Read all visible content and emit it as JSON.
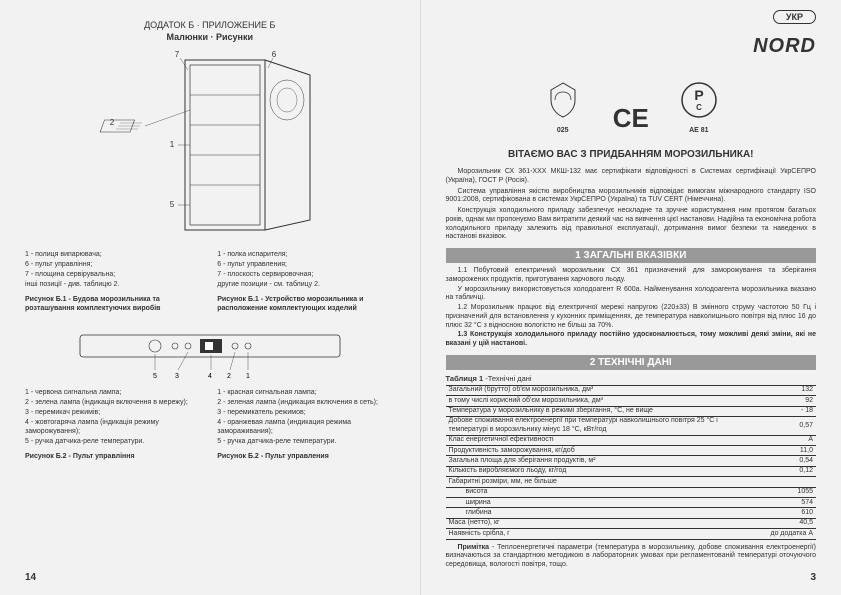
{
  "left": {
    "appendix": "ДОДАТОК Б · ПРИЛОЖЕНИЕ Б",
    "drawings": "Малюнки · Рисунки",
    "callouts": {
      "n1": "1",
      "n2": "2",
      "n5": "5",
      "n6": "6",
      "n7": "7"
    },
    "legend_ua": {
      "items": [
        "1 - полиця випарювача;",
        "6 - пульт управління;",
        "7 - площина сервірувальна;",
        "інші позиції - див. таблицю 2."
      ],
      "fig_title": "Рисунок Б.1",
      "fig_caption": "- Будова морозильника та розташування комплектуючих виробів"
    },
    "legend_ru": {
      "items": [
        "1 - полка испарителя;",
        "6 - пульт управления;",
        "7 - плоскость сервировочная;",
        "другие позиции - см. таблицу 2."
      ],
      "fig_title": "Рисунок Б.1",
      "fig_caption": "- Устройство морозильника и расположение комплектующих изделий"
    },
    "legend2_ua": {
      "items": [
        "1 - червона сигнальна лампа;",
        "2 - зелена лампа (індикація включення в мережу);",
        "3 - перемикач режимів;",
        "4 - жовтогаряча лампа (індикація режиму заморожування);",
        "5 - ручка датчика-реле температури."
      ],
      "fig_title": "Рисунок Б.2",
      "fig_caption": "- Пульт управління"
    },
    "legend2_ru": {
      "items": [
        "1 - красная сигнальная лампа;",
        "2 - зеленая лампа (индикация включения в сеть);",
        "3 - перемикатель режимов;",
        "4 - оранжевая лампа (индикация режима замораживания);",
        "5 - ручка датчика-реле температури."
      ],
      "fig_title": "Рисунок Б.2",
      "fig_caption": "- Пульт управления"
    },
    "pagenum": "14"
  },
  "right": {
    "lang": "УКР",
    "brand": "NORD",
    "cert_labels": {
      "l025": "025",
      "lae81": "AE 81"
    },
    "welcome": "ВІТАЄМО ВАС З ПРИДБАННЯМ МОРОЗИЛЬНИКА!",
    "intro": [
      "Морозильник СХ 361-ХХХ МКШ-132 має сертифікати відповідності в Системах сертифікації УкрСЕПРО (Україна), ГОСТ Р (Росія).",
      "Система управління якістю виробництва морозильників відповідає вимогам міжнародного стандарту ISO 9001:2008, сертифікована в системах УкрСЕПРО (Україна) та TUV CERT (Німеччина).",
      "Конструкція холодильного приладу забезпечує нескладне та зручне користування ним протягом багатьох років, однак ми пропонуємо Вам витратити деякий час на вивчення цієї настанови. Надійна та економічна робота холодильного приладу залежить від правильної експлуатації, дотримання вимог безпеки та наведених в настанові вказівок."
    ],
    "sec1_title": "1 ЗАГАЛЬНІ ВКАЗІВКИ",
    "sec1_body": [
      "1.1 Побутовий електричний морозильник СХ 361 призначений для заморожування та зберігання заморожених продуктів, приготування харчового льоду.",
      "У морозильнику використовується холодоагент R 600а. Найменування холодоагента морозильника вказано на табличці.",
      "1.2 Морозильник працює від електричної мережі напругою (220±33) В змінного струму частотою 50 Гц і призначений для встановлення у кухонних приміщеннях, де температура навколишнього повітря від плюс 16 до плюс 32 °С з відносною вологістю не більш за 70%."
    ],
    "sec1_bold": "1.3 Конструкція холодильного приладу постійно удосконалюється, тому можливі деякі зміни, які не вказані у цій настанові.",
    "sec2_title": "2 ТЕХНІЧНІ ДАНІ",
    "table_title_b": "Таблиця 1",
    "table_title": " -Технічні дані",
    "table": [
      {
        "label": "Загальний (брутто) об'єм морозильника, дм³",
        "val": "132",
        "indent": false
      },
      {
        "label": "в тому числі корисний об'єм морозильника, дм³",
        "val": "92",
        "indent": false
      },
      {
        "label": "Температура у морозильнику в режимі зберігання, °С, не вище",
        "val": "- 18",
        "indent": false
      },
      {
        "label": "Добове споживання електроенергії при температурі навколишнього повітря 25 °С і температурі в морозильнику мінус 18 °С, кВт/год",
        "val": "0,57",
        "indent": false
      },
      {
        "label": "Клас енергетичної ефективності",
        "val": "A",
        "indent": false
      },
      {
        "label": "Продуктивність заморожування, кг/доб",
        "val": "11,0",
        "indent": false
      },
      {
        "label": "Загальна площа для зберігання продуктів, м²",
        "val": "0,54",
        "indent": false
      },
      {
        "label": "Кількість виробляємого льоду, кг/год",
        "val": "0,12",
        "indent": false
      },
      {
        "label": "Габаритні розміри, мм, не більше",
        "val": "",
        "indent": false
      },
      {
        "label": "висота",
        "val": "1055",
        "indent": true
      },
      {
        "label": "ширина",
        "val": "574",
        "indent": true
      },
      {
        "label": "глибина",
        "val": "610",
        "indent": true
      },
      {
        "label": "Маса (нетто), кг",
        "val": "40,5",
        "indent": false
      },
      {
        "label": "Наявність срібла, г",
        "val": "до додатка А",
        "indent": false
      }
    ],
    "note_b": "Примітка",
    "note": " - Теплоенергетичні параметри (температура в морозильнику, добове споживання електроенергії) визначаються за стандартною методикою в лабораторних умовах при регламентованій температурі оточуючого середовища, вологості повітря, тощо.",
    "pagenum": "3"
  }
}
